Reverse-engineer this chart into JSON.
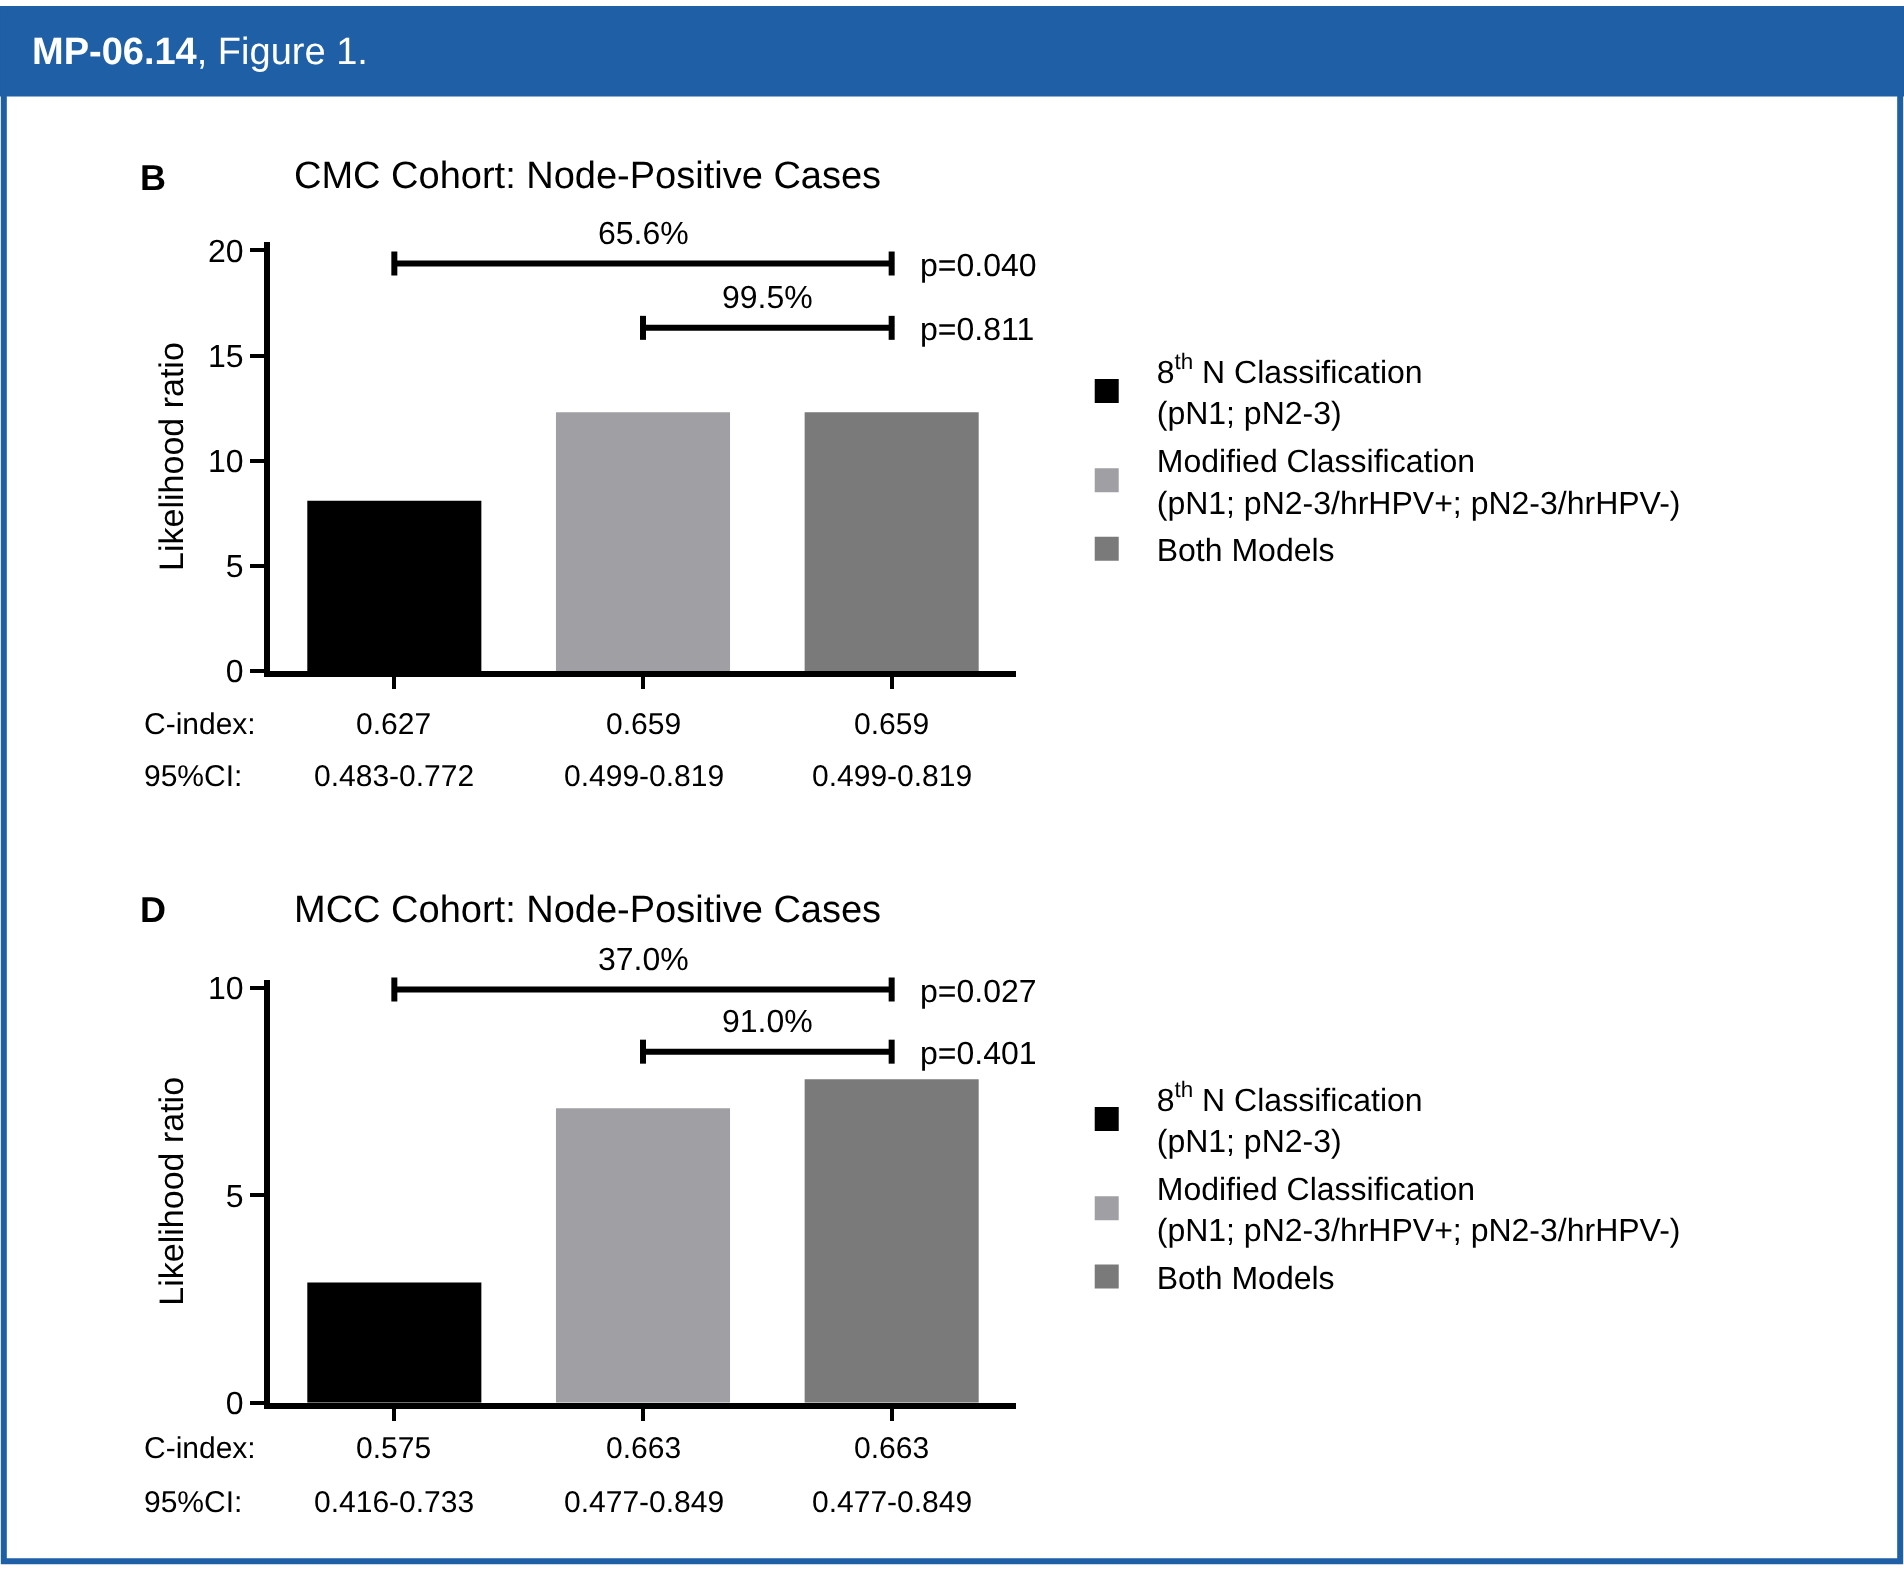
{
  "chart_data": [
    {
      "type": "bar",
      "title": "CMC Cohort: Node-Positive Cases",
      "ylabel": "Likelihood ratio",
      "categories": [
        null,
        null,
        null
      ],
      "tick_labels": "y",
      "legend": "right",
      "series": [
        {
          "name": "8$^{th}$ N Classification\n(pN1; pN2-3)",
          "color": "#000000",
          "values": [
            8.1,
            null,
            null
          ]
        },
        {
          "name": "Modified Classification\n(pN1; pN2-3/hrHPV+; pN2-3/hrHPV-)",
          "color": "#a0a0a4",
          "values": [
            null,
            12.3,
            null
          ]
        },
        {
          "name": "Both Models",
          "color": "#7a7a7a",
          "values": [
            null,
            null,
            12.3
          ]
        }
      ],
      "ylim": [
        0,
        20.4
      ],
      "yticks": [
        0,
        5,
        10,
        15,
        20
      ],
      "annotations": [
        "B",
        "65.6%",
        "p=0.040",
        "99.5%",
        "p=0.811",
        "C-index:",
        "0.627",
        "0.659",
        "0.659",
        "95%CI:",
        "0.483-0.772",
        "0.499-0.819",
        "0.499-0.819",
        "MP-06.14, Figure 1."
      ]
    },
    {
      "type": "bar",
      "title": "MCC Cohort: Node-Positive Cases",
      "ylabel": "Likelihood ratio",
      "categories": [
        null,
        null,
        null
      ],
      "tick_labels": "y",
      "legend": "right",
      "series": [
        {
          "name": "8$^{th}$ N Classification\n(pN1; pN2-3)",
          "color": "#000000",
          "values": [
            2.9,
            null,
            null
          ]
        },
        {
          "name": "Modified Classification\n(pN1; pN2-3/hrHPV+; pN2-3/hrHPV-)",
          "color": "#a0a0a4",
          "values": [
            null,
            7.1,
            null
          ]
        },
        {
          "name": "Both Models",
          "color": "#7a7a7a",
          "values": [
            null,
            null,
            7.8
          ]
        }
      ],
      "ylim": [
        0,
        10.2
      ],
      "yticks": [
        0,
        5,
        10
      ],
      "annotations": [
        "D",
        "37.0%",
        "p=0.027",
        "91.0%",
        "p=0.401",
        "C-index:",
        "0.575",
        "0.663",
        "0.663",
        "95%CI:",
        "0.416-0.733",
        "0.477-0.849",
        "0.477-0.849"
      ]
    }
  ]
}
